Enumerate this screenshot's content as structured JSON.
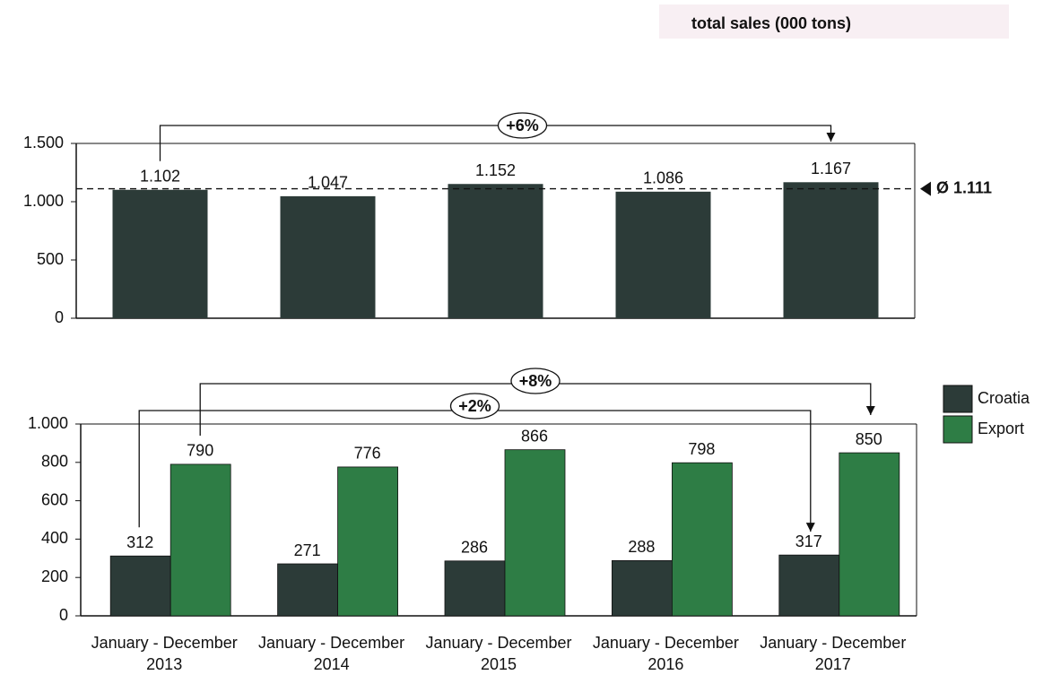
{
  "chart_data": [
    {
      "type": "bar",
      "title": "total sales (000 tons)",
      "values": [
        1102,
        1047,
        1152,
        1086,
        1167
      ],
      "value_labels": [
        "1.102",
        "1.047",
        "1.152",
        "1.086",
        "1.167"
      ],
      "color": "#2c3b38",
      "ylim": [
        0,
        1500
      ],
      "yticks": [
        0,
        500,
        {
          "value": 1000,
          "label": "1.000"
        },
        {
          "value": 1500,
          "label": "1.500"
        }
      ],
      "average": {
        "value": 1111,
        "label": "Ø 1.111"
      },
      "annotations": [
        "+6%"
      ]
    },
    {
      "type": "grouped_bar",
      "categories": [
        "January - December 2013",
        "January - December 2014",
        "January - December 2015",
        "January - December 2016",
        "January - December 2017"
      ],
      "series": [
        {
          "name": "Croatia",
          "color": "#2c3b38",
          "values": [
            312,
            271,
            286,
            288,
            317
          ]
        },
        {
          "name": "Export",
          "color": "#2e7d45",
          "values": [
            790,
            776,
            866,
            798,
            850
          ]
        }
      ],
      "ylim": [
        0,
        1000
      ],
      "yticks": [
        0,
        200,
        400,
        600,
        800,
        {
          "value": 1000,
          "label": "1.000"
        }
      ],
      "annotations": [
        "+8%",
        "+2%"
      ]
    }
  ]
}
